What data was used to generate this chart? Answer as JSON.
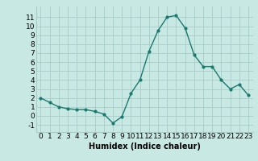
{
  "x": [
    0,
    1,
    2,
    3,
    4,
    5,
    6,
    7,
    8,
    9,
    10,
    11,
    12,
    13,
    14,
    15,
    16,
    17,
    18,
    19,
    20,
    21,
    22,
    23
  ],
  "y": [
    2.0,
    1.5,
    1.0,
    0.8,
    0.7,
    0.7,
    0.5,
    0.2,
    -0.8,
    -0.1,
    2.5,
    4.0,
    7.2,
    9.5,
    11.0,
    11.2,
    9.8,
    6.8,
    5.5,
    5.5,
    4.0,
    3.0,
    3.5,
    2.3
  ],
  "line_color": "#1a7a6e",
  "marker": "o",
  "marker_size": 2.0,
  "bg_color": "#c8e8e4",
  "grid_color": "#a8ccc8",
  "xlabel": "Humidex (Indice chaleur)",
  "xlim": [
    -0.5,
    23.5
  ],
  "ylim": [
    -1.8,
    12.2
  ],
  "yticks": [
    -1,
    0,
    1,
    2,
    3,
    4,
    5,
    6,
    7,
    8,
    9,
    10,
    11
  ],
  "xticks": [
    0,
    1,
    2,
    3,
    4,
    5,
    6,
    7,
    8,
    9,
    10,
    11,
    12,
    13,
    14,
    15,
    16,
    17,
    18,
    19,
    20,
    21,
    22,
    23
  ],
  "xlabel_fontsize": 7,
  "tick_fontsize": 6.5
}
